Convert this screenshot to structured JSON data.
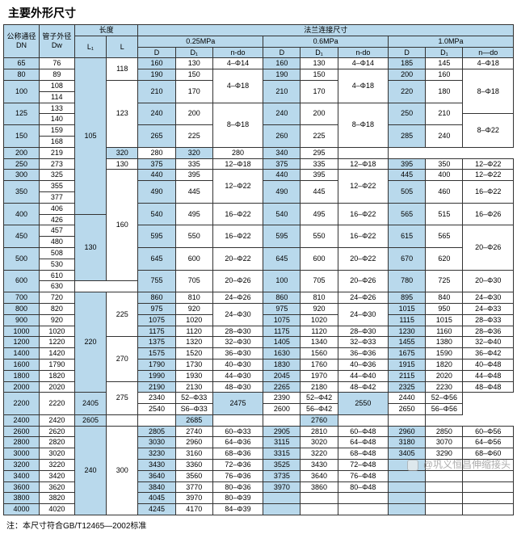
{
  "title": "主要外形尺寸",
  "footnote": "注：本尺寸符合GB/T12465—2002标准",
  "watermark": "@巩义恒昌伸缩接头",
  "headers": {
    "dn": "公称通径\nDN",
    "dw": "管子外径\nDw",
    "length": "长度",
    "l1": "L₁",
    "l": "L",
    "flange": "法兰连接尺寸",
    "p025": "0.25MPa",
    "p06": "0.6MPa",
    "p10": "1.0MPa",
    "D": "D",
    "D1": "D₁",
    "ndo": "n-do",
    "ndo2": "n—do"
  },
  "rows": [
    {
      "dn": "65",
      "dw": "76",
      "l1s": "105",
      "l1r": 14,
      "ls": "118",
      "lr": 2,
      "d025": "160",
      "d1025": "130",
      "nd025": "4–Φ14",
      "nd025r": 1,
      "d06": "160",
      "d106": "130",
      "nd06": "4–Φ14",
      "nd06r": 1,
      "d10": "185",
      "d110": "145",
      "nd10": "4–Φ18",
      "nd10r": 1
    },
    {
      "dn": "80",
      "dw": "89",
      "d025": "190",
      "d1025": "150",
      "nd025": "4–Φ18",
      "nd025r": 3,
      "d06": "190",
      "d106": "150",
      "nd06": "4–Φ18",
      "nd06r": 3,
      "d10": "200",
      "d110": "160",
      "nd10": "8–Φ18",
      "nd10r": 4
    },
    {
      "dn": "100",
      "dnr": 2,
      "dw": "108",
      "ls": "123",
      "lr": 6,
      "d025": "210",
      "d025r": 2,
      "d1025": "170",
      "d1025r": 2,
      "d06": "210",
      "d06r": 2,
      "d106": "170",
      "d106r": 2,
      "d10": "220",
      "d10r": 2,
      "d110": "180",
      "d110r": 2
    },
    {
      "dw": "114"
    },
    {
      "dn": "125",
      "dnr": 2,
      "dw": "133",
      "d025": "240",
      "d025r": 2,
      "d1025": "200",
      "d1025r": 2,
      "nd025": "8–Φ18",
      "nd025r": 4,
      "d06": "240",
      "d06r": 2,
      "d106": "200",
      "d106r": 2,
      "nd06": "8–Φ18",
      "nd06r": 4,
      "d10": "250",
      "d10r": 2,
      "d110": "210",
      "d110r": 2
    },
    {
      "dw": "140",
      "nd10": "8–Φ22",
      "nd10r": 3
    },
    {
      "dn": "150",
      "dnr": 2,
      "dw": "159",
      "d025": "265",
      "d025r": 2,
      "d1025": "225",
      "d1025r": 2,
      "d06": "260",
      "d06r": 2,
      "d106": "225",
      "d106r": 2,
      "d10": "285",
      "d10r": 2,
      "d110": "240",
      "d110r": 2
    },
    {
      "dw": "168"
    },
    {
      "dn": "200",
      "dw": "219",
      "d025": "320",
      "d1025": "280",
      "d06": "320",
      "d106": "280",
      "d10": "340",
      "d110": "295",
      "nd10": "",
      "nd10r": 1
    },
    {
      "dn": "250",
      "dw": "273",
      "ls": "130",
      "lr": 1,
      "d025": "375",
      "d1025": "335",
      "nd025": "12–Φ18",
      "nd025r": 1,
      "d06": "375",
      "d106": "335",
      "nd06": "12–Φ18",
      "nd06r": 1,
      "d10": "395",
      "d110": "350",
      "nd10": "12–Φ22",
      "nd10r": 1
    },
    {
      "dn": "300",
      "dw": "325",
      "ls": "160",
      "lr": 10,
      "d025": "440",
      "d1025": "395",
      "nd025": "12–Φ22",
      "nd025r": 3,
      "d06": "440",
      "d106": "395",
      "nd06": "12–Φ22",
      "nd06r": 3,
      "d10": "445",
      "d110": "400",
      "nd10": "12–Φ22",
      "nd10r": 1
    },
    {
      "dn": "350",
      "dnr": 2,
      "dw": "355",
      "d025": "490",
      "d025r": 2,
      "d1025": "445",
      "d1025r": 2,
      "d06": "490",
      "d06r": 2,
      "d106": "445",
      "d106r": 2,
      "d10": "505",
      "d10r": 2,
      "d110": "460",
      "d110r": 2,
      "nd10": "16–Φ22",
      "nd10r": 2
    },
    {
      "dw": "377"
    },
    {
      "dn": "400",
      "dnr": 2,
      "dw": "406",
      "d025": "540",
      "d025r": 2,
      "d1025": "495",
      "d1025r": 2,
      "nd025": "16–Φ22",
      "nd025r": 2,
      "d06": "540",
      "d06r": 2,
      "d106": "495",
      "d106r": 2,
      "nd06": "16–Φ22",
      "nd06r": 2,
      "d10": "565",
      "d10r": 2,
      "d110": "515",
      "d110r": 2,
      "nd10": "16–Φ26",
      "nd10r": 2
    },
    {
      "dw": "426",
      "l1s": "130",
      "l1r": 6
    },
    {
      "dn": "450",
      "dnr": 2,
      "dw": "457",
      "d025": "595",
      "d025r": 2,
      "d1025": "550",
      "d1025r": 2,
      "nd025": "16–Φ22",
      "nd025r": 2,
      "d06": "595",
      "d06r": 2,
      "d106": "550",
      "d106r": 2,
      "nd06": "16–Φ22",
      "nd06r": 2,
      "d10": "615",
      "d10r": 2,
      "d110": "565",
      "d110r": 2,
      "nd10": "20–Φ26",
      "nd10r": 4
    },
    {
      "dw": "480"
    },
    {
      "dn": "500",
      "dnr": 2,
      "dw": "508",
      "d025": "645",
      "d025r": 2,
      "d1025": "600",
      "d1025r": 2,
      "nd025": "20–Φ22",
      "nd025r": 2,
      "d06": "645",
      "d06r": 2,
      "d106": "600",
      "d106r": 2,
      "nd06": "20–Φ22",
      "nd06r": 2,
      "d10": "670",
      "d10r": 2,
      "d110": "620",
      "d110r": 2
    },
    {
      "dw": "530"
    },
    {
      "dn": "600",
      "dnr": 2,
      "dw": "610",
      "d025": "755",
      "d025r": 2,
      "d1025": "705",
      "d1025r": 2,
      "nd025": "20–Φ26",
      "nd025r": 2,
      "d06": "100",
      "d06r": 2,
      "d106": "705",
      "d106r": 2,
      "nd06": "20–Φ26",
      "nd06r": 2,
      "d10": "780",
      "d10r": 2,
      "d110": "725",
      "d110r": 2,
      "nd10": "20–Φ30",
      "nd10r": 2
    },
    {
      "dw": "630"
    },
    {
      "dn": "700",
      "dw": "720",
      "l1s": "220",
      "l1r": 9,
      "ls": "225",
      "lr": 4,
      "d025": "860",
      "d1025": "810",
      "nd025": "24–Φ26",
      "nd025r": 1,
      "d06": "860",
      "d106": "810",
      "nd06": "24–Φ26",
      "nd06r": 1,
      "d10": "895",
      "d110": "840",
      "nd10": "24–Φ30",
      "nd10r": 1
    },
    {
      "dn": "800",
      "dw": "820",
      "d025": "975",
      "d1025": "920",
      "nd025": "24–Φ30",
      "nd025r": 2,
      "d06": "975",
      "d106": "920",
      "nd06": "24–Φ30",
      "nd06r": 2,
      "d10": "1015",
      "d110": "950",
      "nd10": "24–Φ33",
      "nd10r": 1
    },
    {
      "dn": "900",
      "dw": "920",
      "d025": "1075",
      "d1025": "1020",
      "d06": "1075",
      "d106": "1020",
      "d10": "1115",
      "d110": "1015",
      "nd10": "28–Φ33",
      "nd10r": 1
    },
    {
      "dn": "1000",
      "dw": "1020",
      "d025": "1175",
      "d1025": "1120",
      "nd025": "28–Φ30",
      "nd025r": 1,
      "d06": "1175",
      "d106": "1120",
      "nd06": "28–Φ30",
      "nd06r": 1,
      "d10": "1230",
      "d110": "1160",
      "nd10": "28–Φ36",
      "nd10r": 1
    },
    {
      "dn": "1200",
      "dw": "1220",
      "ls": "270",
      "lr": 4,
      "d025": "1375",
      "d1025": "1320",
      "nd025": "32–Φ30",
      "nd025r": 1,
      "d06": "1405",
      "d106": "1340",
      "nd06": "32–Φ33",
      "nd06r": 1,
      "d10": "1455",
      "d110": "1380",
      "nd10": "32–Φ40",
      "nd10r": 1
    },
    {
      "dn": "1400",
      "dw": "1420",
      "d025": "1575",
      "d1025": "1520",
      "nd025": "36–Φ30",
      "nd025r": 1,
      "d06": "1630",
      "d106": "1560",
      "nd06": "36–Φ36",
      "nd06r": 1,
      "d10": "1675",
      "d110": "1590",
      "nd10": "36–Φ42",
      "nd10r": 1
    },
    {
      "dn": "1600",
      "dw": "1790",
      "d025": "1790",
      "d1025": "1730",
      "nd025": "40–Φ30",
      "nd025r": 1,
      "d06": "1830",
      "d106": "1760",
      "nd06": "40–Φ36",
      "nd06r": 1,
      "d10": "1915",
      "d110": "1820",
      "nd10": "40–Φ48",
      "nd10r": 1
    },
    {
      "dn": "1800",
      "dw": "1820",
      "d025": "1990",
      "d1025": "1930",
      "nd025": "44–Φ30",
      "nd025r": 1,
      "d06": "2045",
      "d106": "1970",
      "nd06": "44–Φ40",
      "nd06r": 1,
      "d10": "2115",
      "d110": "2020",
      "nd10": "44–Φ48",
      "nd10r": 1
    },
    {
      "dn": "2000",
      "dw": "2020",
      "ls": "275",
      "lr": 3,
      "d025": "2190",
      "d1025": "2130",
      "nd025": "48–Φ30",
      "nd025r": 1,
      "d06": "2265",
      "d106": "2180",
      "nd06": "48–Φ42",
      "nd06r": 1,
      "d10": "2325",
      "d110": "2230",
      "nd10": "48–Φ48",
      "nd10r": 1
    },
    {
      "dn": "2200",
      "dnr": 2,
      "dw": "2220",
      "dwr": 2,
      "d025": "2405",
      "d025r": 2,
      "d1025": "2340",
      "nd025": "52–Φ33",
      "nd025r": 1,
      "d06": "2475",
      "d06r": 2,
      "d106": "2390",
      "nd06": "52–Φ42",
      "nd06r": 1,
      "d10": "2550",
      "d10r": 2,
      "d110": "2440",
      "nd10": "52–Φ56",
      "nd10r": 1
    },
    {
      "d1025": "2540",
      "nd025": "S6–Φ33",
      "nd025r": 1,
      "d106": "2600",
      "nd06": "56–Φ42",
      "nd06r": 1,
      "d110": "2650",
      "nd10": "56–Φ56",
      "nd10r": 1
    },
    {
      "dn": "2400",
      "dw": "2420",
      "d025": "2605",
      "d1025": "",
      "nd025": "",
      "nd025r": 1,
      "d06": "2685",
      "d106": "",
      "nd06": "",
      "nd06r": 1,
      "d10": "2760",
      "d110": "",
      "nd10": "",
      "nd10r": 1
    },
    {
      "dn": "2600",
      "dw": "2620",
      "l1s": "240",
      "l1r": 8,
      "ls": "300",
      "lr": 8,
      "d025": "2805",
      "d1025": "2740",
      "nd025": "60–Φ33",
      "nd025r": 1,
      "d06": "2905",
      "d106": "2810",
      "nd06": "60–Φ48",
      "nd06r": 1,
      "d10": "2960",
      "d110": "2850",
      "nd10": "60–Φ56",
      "nd10r": 1
    },
    {
      "dn": "2800",
      "dw": "2820",
      "d025": "3030",
      "d1025": "2960",
      "nd025": "64–Φ36",
      "nd025r": 1,
      "d06": "3115",
      "d106": "3020",
      "nd06": "64–Φ48",
      "nd06r": 1,
      "d10": "3180",
      "d110": "3070",
      "nd10": "64–Φ56",
      "nd10r": 1
    },
    {
      "dn": "3000",
      "dw": "3020",
      "d025": "3230",
      "d1025": "3160",
      "nd025": "68–Φ36",
      "nd025r": 1,
      "d06": "3315",
      "d106": "3220",
      "nd06": "68–Φ48",
      "nd06r": 1,
      "d10": "3405",
      "d110": "3290",
      "nd10": "68–Φ60",
      "nd10r": 1
    },
    {
      "dn": "3200",
      "dw": "3220",
      "d025": "3430",
      "d1025": "3360",
      "nd025": "72–Φ36",
      "nd025r": 1,
      "d06": "3525",
      "d106": "3430",
      "nd06": "72–Φ48",
      "nd06r": 1,
      "d10": "",
      "d110": "",
      "nd10": "",
      "nd10r": 1
    },
    {
      "dn": "3400",
      "dw": "3420",
      "d025": "3640",
      "d1025": "3560",
      "nd025": "76–Φ36",
      "nd025r": 1,
      "d06": "3735",
      "d106": "3640",
      "nd06": "76–Φ48",
      "nd06r": 1,
      "d10": "",
      "d110": "",
      "nd10": "",
      "nd10r": 1
    },
    {
      "dn": "3600",
      "dw": "3620",
      "d025": "3840",
      "d1025": "3770",
      "nd025": "80–Φ36",
      "nd025r": 1,
      "d06": "3970",
      "d106": "3860",
      "nd06": "80–Φ48",
      "nd06r": 1,
      "d10": "",
      "d110": "",
      "nd10": "",
      "nd10r": 1
    },
    {
      "dn": "3800",
      "dw": "3820",
      "d025": "4045",
      "d1025": "3970",
      "nd025": "80–Φ39",
      "nd025r": 1,
      "d06": "",
      "d106": "",
      "nd06": "",
      "nd06r": 1,
      "d10": "",
      "d110": "",
      "nd10": "",
      "nd10r": 1
    },
    {
      "dn": "4000",
      "dw": "4020",
      "d025": "4245",
      "d1025": "4170",
      "nd025": "84–Φ39",
      "nd025r": 1,
      "d06": "",
      "d106": "",
      "nd06": "",
      "nd06r": 1,
      "d10": "",
      "d110": "",
      "nd10": "",
      "nd10r": 1
    }
  ]
}
